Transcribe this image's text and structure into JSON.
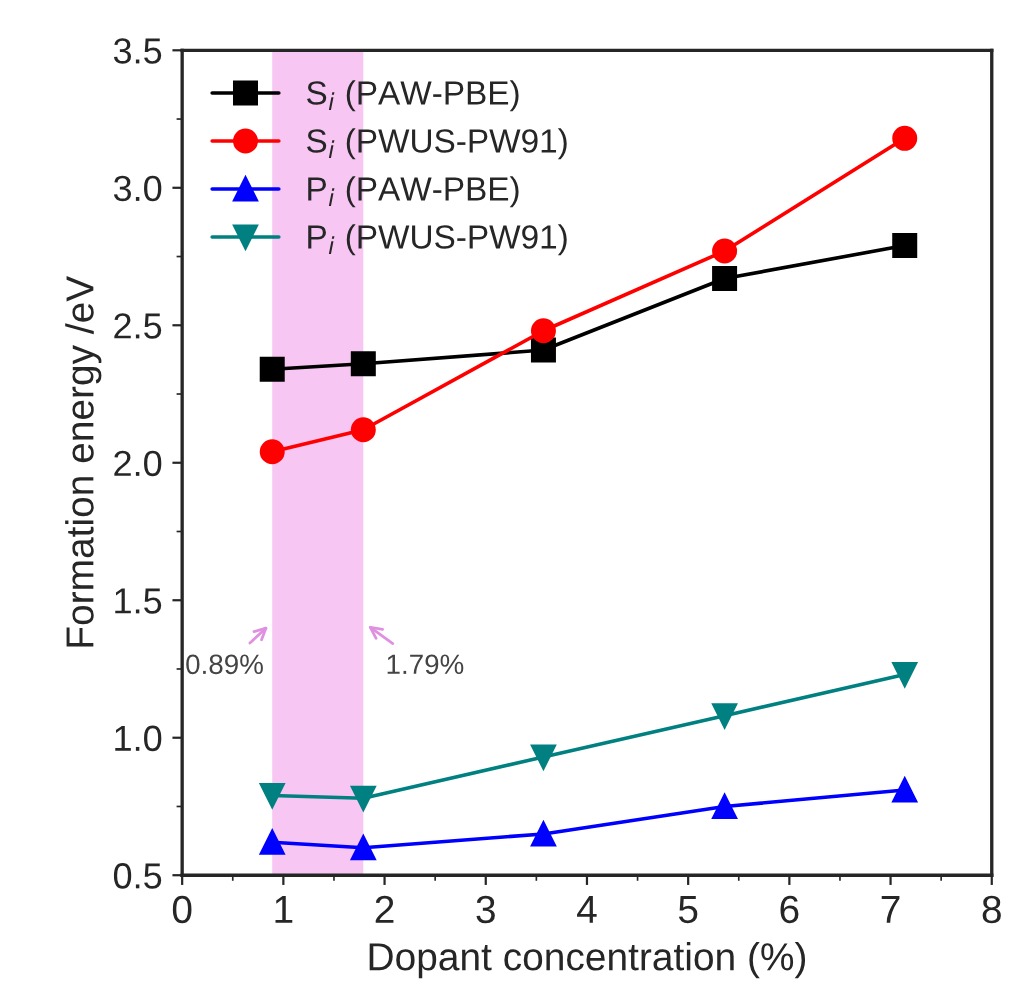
{
  "chart_data": {
    "type": "line",
    "xlabel": "Dopant concentration (%)",
    "ylabel": "Formation energy /eV",
    "x": [
      0.89,
      1.79,
      3.57,
      5.36,
      7.14
    ],
    "series": [
      {
        "name": "S$_{i}$ (PAW-PBE)",
        "color": "#000000",
        "marker": "square",
        "values": [
          2.34,
          2.36,
          2.41,
          2.67,
          2.79
        ]
      },
      {
        "name": "S$_{i}$ (PWUS-PW91)",
        "color": "#ff0000",
        "marker": "circle",
        "values": [
          2.04,
          2.12,
          2.48,
          2.77,
          3.18
        ]
      },
      {
        "name": "P$_{i}$ (PAW-PBE)",
        "color": "#0000ff",
        "marker": "triangle",
        "values": [
          0.62,
          0.6,
          0.65,
          0.75,
          0.81
        ]
      },
      {
        "name": "P$_{i}$ (PWUS-PW91)",
        "color": "#008080",
        "marker": "triangle_down",
        "values": [
          0.79,
          0.78,
          0.93,
          1.08,
          1.23
        ]
      }
    ],
    "bands": [
      {
        "axis": "x",
        "from": 0.89,
        "to": 1.79,
        "color": "#f5b8f0"
      }
    ],
    "annotations": [
      {
        "text": "0.89%",
        "x": 0.89,
        "y": 1.42
      },
      {
        "text": "1.79%",
        "x": 1.79,
        "y": 1.42
      }
    ],
    "xlim": [
      0,
      8
    ],
    "xticks": [
      0,
      1,
      2,
      3,
      4,
      5,
      6,
      7,
      8
    ],
    "ylim": [
      0.5,
      3.5
    ],
    "yticks": [
      {
        "value": 0.5,
        "label": "0.5"
      },
      {
        "value": 1.0,
        "label": "1.0"
      },
      {
        "value": 1.5,
        "label": "1.5"
      },
      {
        "value": 2.0,
        "label": "2.0"
      },
      {
        "value": 2.5,
        "label": "2.5"
      },
      {
        "value": 3.0,
        "label": "3.0"
      },
      {
        "value": 3.5,
        "label": "3.5"
      }
    ],
    "grid": false,
    "legend": "top left"
  }
}
